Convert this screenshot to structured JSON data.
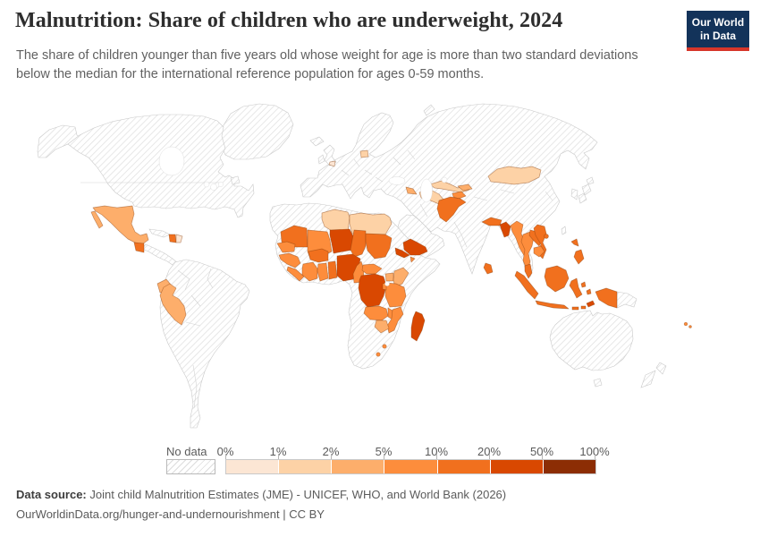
{
  "header": {
    "title": "Malnutrition: Share of children who are underweight, 2024",
    "subtitle": "The share of children younger than five years old whose weight for age is more than two standard deviations below the median for the international reference population for ages 0-59 months.",
    "logo": {
      "line1": "Our World",
      "line2": "in Data",
      "bg": "#13335a",
      "accent": "#d7362a"
    }
  },
  "legend": {
    "no_data_label": "No data",
    "ticks": [
      "0%",
      "1%",
      "2%",
      "5%",
      "10%",
      "20%",
      "50%",
      "100%"
    ]
  },
  "footer": {
    "source_label": "Data source:",
    "source_text": "Joint child Malnutrition Estimates (JME) - UNICEF, WHO, and World Bank (2026)",
    "attribution": "OurWorldinData.org/hunger-and-undernourishment | CC BY"
  },
  "chart_data": {
    "type": "heatmap",
    "subtype": "choropleth-world-map",
    "title": "Malnutrition: Share of children who are underweight, 2024",
    "year": 2024,
    "unit": "%",
    "bin_edges_labels": [
      "0%",
      "1%",
      "2%",
      "5%",
      "10%",
      "20%",
      "50%",
      "100%"
    ],
    "bins": [
      {
        "range": "0-1%",
        "color": "#fce6d4"
      },
      {
        "range": "1-2%",
        "color": "#fdd2a6"
      },
      {
        "range": "2-5%",
        "color": "#fdae6b"
      },
      {
        "range": "5-10%",
        "color": "#fd8d3c"
      },
      {
        "range": "10-20%",
        "color": "#f1701e"
      },
      {
        "range": "20-50%",
        "color": "#d94801"
      },
      {
        "range": "50-100%",
        "color": "#8c2d04"
      }
    ],
    "no_data": {
      "label": "No data",
      "style": "hatched"
    },
    "map_style": {
      "ocean": "#ffffff",
      "no_data_border": "#c9c9c9",
      "hatch_line": "#dedede",
      "country_border": "rgba(135,62,12,0.5)"
    },
    "countries": {
      "mexico": "2-5%",
      "guatemala": "10-20%",
      "haiti": "10-20%",
      "dominican-republic": "0-1%",
      "ecuador": "2-5%",
      "peru": "2-5%",
      "belgium": "0-1%",
      "lithuania": "1-2%",
      "libya": "1-2%",
      "egypt": "1-2%",
      "mauritania": "10-20%",
      "senegal": "5-10%",
      "guinea": "5-10%",
      "sierra-leone": "5-10%",
      "ivory-coast": "5-10%",
      "ghana": "5-10%",
      "togo-benin": "10-20%",
      "burkina-faso": "10-20%",
      "mali": "5-10%",
      "niger": "20-50%",
      "nigeria": "20-50%",
      "chad": "10-20%",
      "sudan": "10-20%",
      "eritrea": "20-50%",
      "djibouti": "5-10%",
      "cameroon": "5-10%",
      "central-african-republic": "5-10%",
      "dr-congo": "20-50%",
      "uganda": "2-5%",
      "kenya": "2-5%",
      "tanzania": "5-10%",
      "rwanda-burundi": "5-10%",
      "zambia": "5-10%",
      "malawi": "5-10%",
      "mozambique": "5-10%",
      "zimbabwe": "2-5%",
      "eswatini": "5-10%",
      "lesotho": "5-10%",
      "madagascar": "20-50%",
      "yemen": "20-50%",
      "azerbaijan": "2-5%",
      "turkmenistan": "1-2%",
      "uzbekistan": "1-2%",
      "kyrgyzstan": "2-5%",
      "tajikistan": "5-10%",
      "afghanistan": "10-20%",
      "mongolia": "1-2%",
      "nepal": "10-20%",
      "bangladesh": "20-50%",
      "sri-lanka": "10-20%",
      "myanmar": "5-10%",
      "thailand": "5-10%",
      "laos": "10-20%",
      "vietnam": "10-20%",
      "cambodia": "5-10%",
      "malaysia": "10-20%",
      "indonesia": "10-20%",
      "philippines": "10-20%",
      "timor-leste": "20-50%",
      "fiji": "5-10%"
    }
  }
}
